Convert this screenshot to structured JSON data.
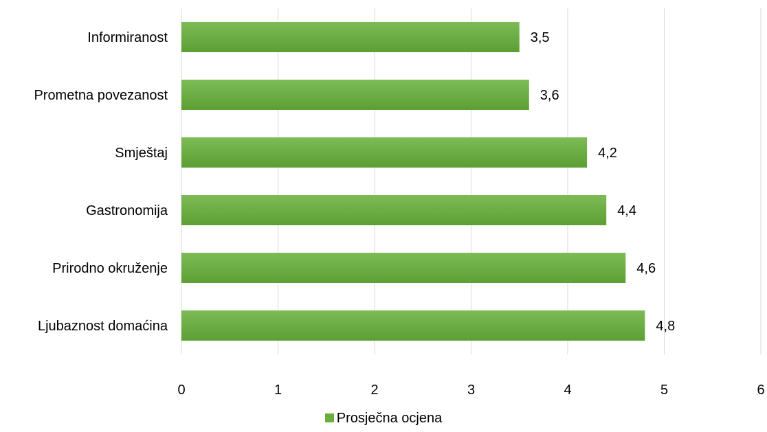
{
  "chart_data": {
    "type": "bar",
    "orientation": "horizontal",
    "categories": [
      "Informiranost",
      "Prometna povezanost",
      "Smještaj",
      "Gastronomija",
      "Prirodno okruženje",
      "Ljubaznost domaćina"
    ],
    "series": [
      {
        "name": "Prosječna ocjena",
        "values": [
          3.5,
          3.6,
          4.2,
          4.4,
          4.6,
          4.8
        ],
        "color": "#6aae3e"
      }
    ],
    "data_labels": [
      "3,5",
      "3,6",
      "4,2",
      "4,4",
      "4,6",
      "4,8"
    ],
    "xticks": [
      "0",
      "1",
      "2",
      "3",
      "4",
      "5",
      "6"
    ],
    "xlim": [
      0,
      6
    ],
    "grid": true,
    "legend_position": "bottom",
    "title": "",
    "xlabel": "",
    "ylabel": ""
  },
  "legend": {
    "label": "Prosječna ocjena"
  }
}
